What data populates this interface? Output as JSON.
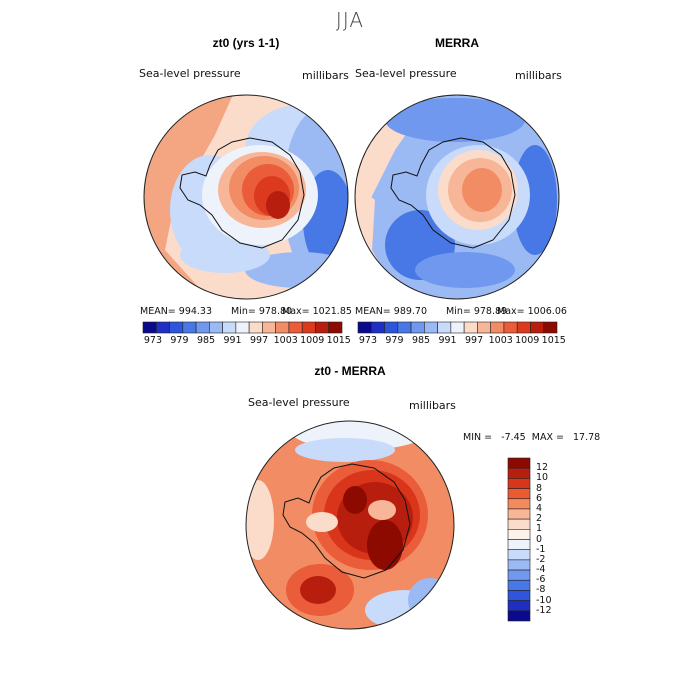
{
  "title": "JJA",
  "panels": [
    {
      "title": "zt0 (yrs 1-1)",
      "left_label": "Sea-level pressure",
      "right_label": "millibars",
      "stats": {
        "mean": "MEAN= 994.33",
        "min": "Min= 978.80",
        "max": "Max= 1021.85"
      }
    },
    {
      "title": "MERRA",
      "left_label": "Sea-level pressure",
      "right_label": "millibars",
      "stats": {
        "mean": "MEAN= 989.70",
        "min": "Min= 978.89",
        "max": "Max= 1006.06"
      }
    },
    {
      "title": "zt0 - MERRA",
      "left_label": "Sea-level pressure",
      "right_label": "millibars",
      "stats": {
        "minmax": "MIN =   -7.45  MAX =   17.78"
      }
    }
  ],
  "colorbar_top": {
    "tick_labels": [
      "973",
      "979",
      "985",
      "991",
      "997",
      "1003",
      "1009",
      "1015"
    ],
    "colors": [
      "#0a0a8c",
      "#1f2fc4",
      "#2f55dd",
      "#4778e6",
      "#6f98ee",
      "#9bbaf3",
      "#c8dbfa",
      "#eef3fb",
      "#fbdccb",
      "#f7b698",
      "#f28c64",
      "#ea5c3a",
      "#dc3a1e",
      "#b81e0e",
      "#8c0a00"
    ]
  },
  "colorbar_diff": {
    "labels": [
      "12",
      "10",
      "8",
      "6",
      "4",
      "2",
      "1",
      "0",
      "-1",
      "-2",
      "-4",
      "-6",
      "-8",
      "-10",
      "-12"
    ],
    "colors": [
      "#8c0a00",
      "#b81e0e",
      "#d8351a",
      "#ec5a32",
      "#f28a5c",
      "#f7b698",
      "#fbdccb",
      "#fbf2ec",
      "#eef3fb",
      "#c8dbfa",
      "#9bbaf3",
      "#6f98ee",
      "#4778e6",
      "#2f55dd",
      "#1f2fc4",
      "#0a0a8c"
    ]
  },
  "chart_data": [
    {
      "type": "heatmap",
      "title": "zt0 (yrs 1-1)",
      "variable": "Sea-level pressure",
      "units": "millibars",
      "mean": 994.33,
      "min": 978.8,
      "max": 1021.85,
      "levels": [
        973,
        976,
        979,
        982,
        985,
        988,
        991,
        994,
        997,
        1000,
        1003,
        1006,
        1009,
        1012,
        1015
      ]
    },
    {
      "type": "heatmap",
      "title": "MERRA",
      "variable": "Sea-level pressure",
      "units": "millibars",
      "mean": 989.7,
      "min": 978.89,
      "max": 1006.06,
      "levels": [
        973,
        976,
        979,
        982,
        985,
        988,
        991,
        994,
        997,
        1000,
        1003,
        1006,
        1009,
        1012,
        1015
      ]
    },
    {
      "type": "heatmap",
      "title": "zt0 - MERRA",
      "variable": "Sea-level pressure",
      "units": "millibars",
      "min": -7.45,
      "max": 17.78,
      "levels": [
        -12,
        -10,
        -8,
        -6,
        -4,
        -2,
        -1,
        0,
        1,
        2,
        4,
        6,
        8,
        10,
        12
      ]
    }
  ]
}
